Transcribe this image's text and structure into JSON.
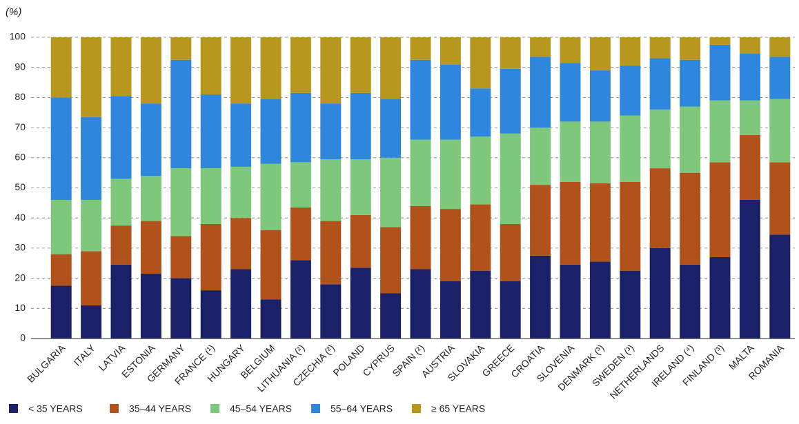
{
  "chart_data": {
    "type": "stacked-bar",
    "unit_label": "(%)",
    "categories": [
      "BULGARIA",
      "ITALY",
      "LATVIA",
      "ESTONIA",
      "GERMANY",
      "FRANCE (¹)",
      "HUNGARY",
      "BELGIUM",
      "LITHUANIA (²)",
      "CZECHIA (²)",
      "POLAND",
      "CYPRUS",
      "SPAIN (²)",
      "AUSTRIA",
      "SLOVAKIA",
      "GREECE",
      "CROATIA",
      "SLOVENIA",
      "DENMARK (³)",
      "SWEDEN (³)",
      "NETHERLANDS",
      "IRELAND (⁴)",
      "FINLAND (³)",
      "MALTA",
      "ROMANIA"
    ],
    "series": [
      {
        "name": "< 35 YEARS",
        "color": "#1b2168",
        "values": [
          17.5,
          11,
          24.5,
          21.5,
          20,
          16,
          23,
          13,
          26,
          18,
          23.5,
          15,
          23,
          19,
          22.5,
          19,
          27.5,
          24.5,
          25.5,
          22.5,
          30,
          24.5,
          27,
          46,
          34.5
        ]
      },
      {
        "name": "35–44 YEARS",
        "color": "#b0521a",
        "values": [
          10.5,
          18,
          13,
          17.5,
          14,
          22,
          17,
          23,
          17.5,
          21,
          17.5,
          22,
          21,
          24,
          22,
          19,
          23.5,
          27.5,
          26,
          29.5,
          26.5,
          30.5,
          31.5,
          21.5,
          24
        ]
      },
      {
        "name": "45–54 YEARS",
        "color": "#7dc87b",
        "values": [
          18,
          17,
          15.5,
          15,
          22.5,
          18.5,
          17,
          22,
          15,
          20.5,
          18.5,
          23,
          22,
          23,
          22.5,
          30,
          19,
          20,
          20.5,
          22,
          19.5,
          22,
          20.5,
          11.5,
          21
        ]
      },
      {
        "name": "55–64 YEARS",
        "color": "#2f87dd",
        "values": [
          34,
          27.5,
          27.5,
          24,
          36,
          24.5,
          21,
          21.5,
          23,
          18.5,
          22,
          19.5,
          26.5,
          25,
          16,
          21.5,
          23.5,
          19.5,
          17,
          16.5,
          17,
          15.5,
          18.5,
          15.5,
          14
        ]
      },
      {
        "name": "≥ 65 YEARS",
        "color": "#b8971f",
        "values": [
          20,
          26.5,
          19.5,
          22,
          7.5,
          19,
          22,
          20.5,
          18.5,
          22,
          18.5,
          20.5,
          7.5,
          9,
          17,
          10.5,
          6.5,
          8.5,
          11,
          9.5,
          7,
          7.5,
          2.5,
          5.5,
          6.5
        ]
      }
    ],
    "ylim": [
      0,
      100
    ],
    "yticks": [
      0,
      10,
      20,
      30,
      40,
      50,
      60,
      70,
      80,
      90,
      100
    ],
    "grid": true
  }
}
